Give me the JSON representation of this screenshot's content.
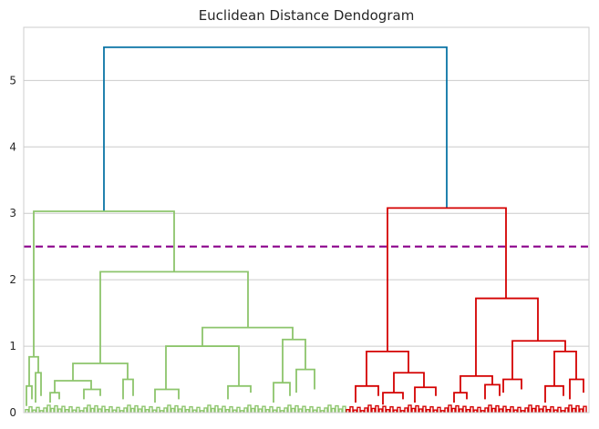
{
  "chart_data": {
    "type": "dendrogram",
    "title": "Euclidean Distance Dendogram",
    "xlabel": "",
    "ylabel": "",
    "ylim": [
      0,
      5.8
    ],
    "yticks": [
      0,
      1,
      2,
      3,
      4,
      5
    ],
    "grid": "horizontal",
    "colors": {
      "cluster_left": "#8dc56c",
      "cluster_right": "#d40000",
      "root": "#0a74a5",
      "threshold": "#8b008b"
    },
    "threshold": 2.5,
    "root": {
      "height": 5.5
    },
    "clusters": [
      {
        "name": "green",
        "merge_height": 3.03,
        "sub_merges": [
          2.12,
          1.28,
          1.0,
          0.74,
          0.84
        ]
      },
      {
        "name": "red",
        "merge_height": 3.08,
        "sub_merges": [
          1.72,
          1.08,
          0.92,
          0.6
        ]
      }
    ]
  }
}
